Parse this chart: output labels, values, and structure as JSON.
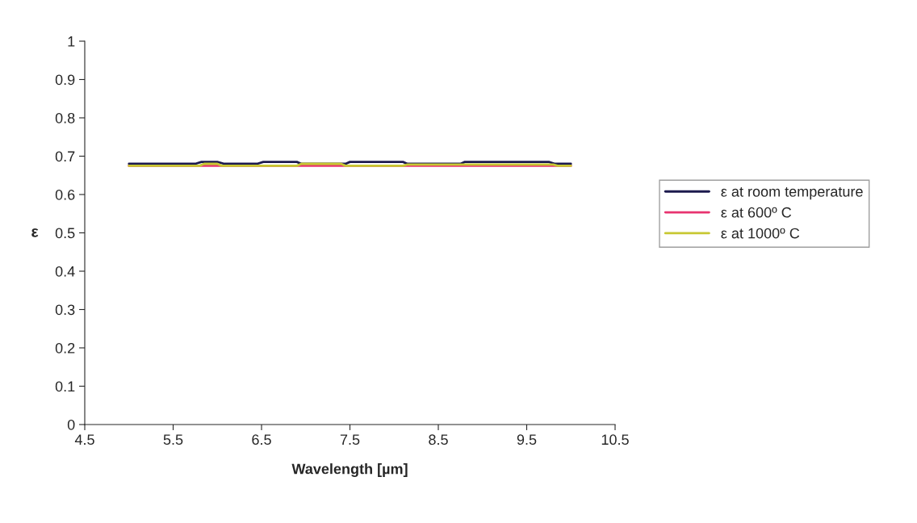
{
  "chart_data": {
    "type": "line",
    "xlabel": "Wavelength [µm]",
    "ylabel": "ε",
    "xlim": [
      4.5,
      10.5
    ],
    "xticks": [
      4.5,
      5.5,
      6.5,
      7.5,
      8.5,
      9.5,
      10.5
    ],
    "ylim": [
      0,
      1
    ],
    "yticks": [
      0,
      0.1,
      0.2,
      0.3,
      0.4,
      0.5,
      0.6,
      0.7,
      0.8,
      0.9,
      1
    ],
    "grid": false,
    "legend": "right",
    "marker": "none",
    "line_style": "solid",
    "series": [
      {
        "name": "ε at room temperature",
        "color": "#1c1a4e",
        "x": [
          5.0,
          5.75,
          5.82,
          6.0,
          6.08,
          6.45,
          6.52,
          6.9,
          6.95,
          7.45,
          7.5,
          8.1,
          8.15,
          8.75,
          8.8,
          9.75,
          9.82,
          10.0
        ],
        "values": [
          0.68,
          0.68,
          0.685,
          0.685,
          0.68,
          0.68,
          0.685,
          0.685,
          0.68,
          0.68,
          0.685,
          0.685,
          0.68,
          0.68,
          0.685,
          0.685,
          0.68,
          0.68
        ]
      },
      {
        "name": "ε at 600º C",
        "color": "#e8336f",
        "x": [
          5.0,
          10.0
        ],
        "values": [
          0.675,
          0.675
        ]
      },
      {
        "name": "ε at 1000º C",
        "color": "#c8c832",
        "x": [
          5.0,
          5.8,
          5.85,
          6.0,
          6.05,
          6.9,
          6.95,
          7.4,
          7.45,
          8.1,
          8.15,
          9.0,
          9.05,
          9.8,
          9.85,
          10.0
        ],
        "values": [
          0.675,
          0.675,
          0.68,
          0.68,
          0.675,
          0.675,
          0.68,
          0.68,
          0.675,
          0.675,
          0.678,
          0.678,
          0.678,
          0.678,
          0.675,
          0.675
        ]
      }
    ]
  }
}
